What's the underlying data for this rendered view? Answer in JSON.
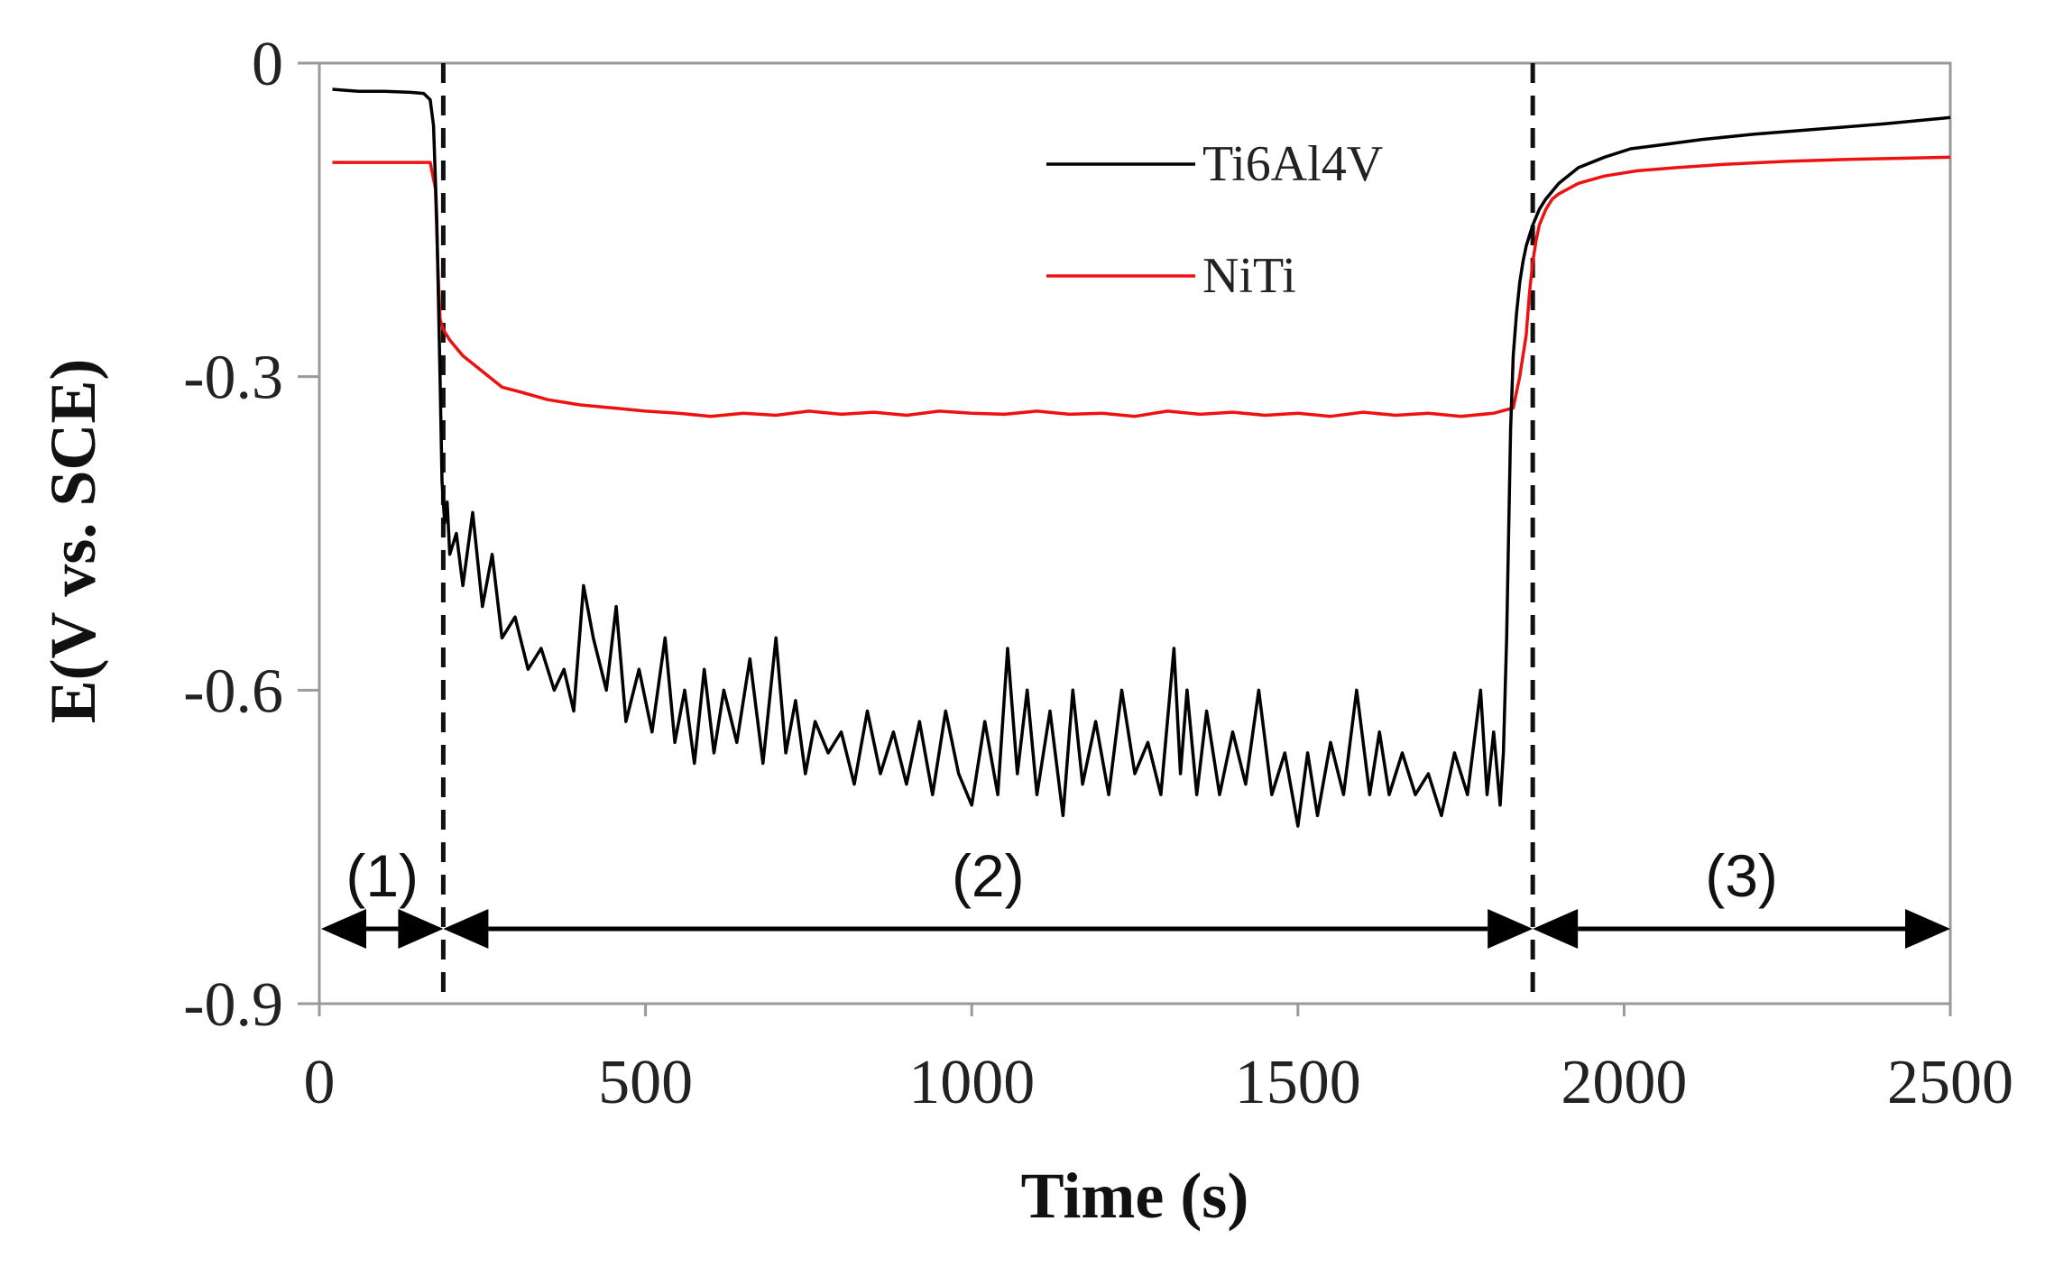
{
  "chart_data": {
    "type": "line",
    "title": "",
    "xlabel": "Time (s)",
    "ylabel": "E(V vs. SCE)",
    "xlim": [
      0,
      2500
    ],
    "ylim": [
      -0.9,
      0
    ],
    "xticks": [
      0,
      500,
      1000,
      1500,
      2000,
      2500
    ],
    "xtick_labels": [
      "0",
      "500",
      "1000",
      "1500",
      "2000",
      "2500"
    ],
    "yticks": [
      0,
      -0.3,
      -0.6,
      -0.9
    ],
    "ytick_labels": [
      "0",
      "-0.3",
      "-0.6",
      "-0.9"
    ],
    "grid": false,
    "legend_position": "top-center",
    "series": [
      {
        "name": "Ti6Al4V",
        "color": "#000000",
        "x": [
          20,
          60,
          100,
          140,
          160,
          170,
          175,
          180,
          185,
          188,
          192,
          196,
          200,
          210,
          220,
          235,
          250,
          265,
          280,
          300,
          320,
          340,
          360,
          375,
          390,
          405,
          420,
          440,
          455,
          470,
          490,
          510,
          530,
          545,
          560,
          575,
          590,
          605,
          620,
          640,
          660,
          680,
          700,
          715,
          730,
          745,
          760,
          780,
          800,
          820,
          840,
          860,
          880,
          900,
          920,
          940,
          960,
          980,
          1000,
          1020,
          1040,
          1055,
          1070,
          1085,
          1100,
          1120,
          1140,
          1155,
          1170,
          1190,
          1210,
          1230,
          1250,
          1270,
          1290,
          1310,
          1320,
          1330,
          1345,
          1360,
          1380,
          1400,
          1420,
          1440,
          1460,
          1480,
          1500,
          1515,
          1530,
          1550,
          1570,
          1590,
          1610,
          1625,
          1640,
          1660,
          1680,
          1700,
          1720,
          1740,
          1760,
          1780,
          1790,
          1800,
          1810,
          1815,
          1820,
          1823,
          1826,
          1830,
          1835,
          1840,
          1845,
          1850,
          1855,
          1860,
          1870,
          1880,
          1900,
          1930,
          1970,
          2010,
          2060,
          2120,
          2200,
          2300,
          2400,
          2500
        ],
        "y": [
          -0.025,
          -0.027,
          -0.027,
          -0.028,
          -0.029,
          -0.035,
          -0.06,
          -0.15,
          -0.3,
          -0.4,
          -0.44,
          -0.42,
          -0.47,
          -0.45,
          -0.5,
          -0.43,
          -0.52,
          -0.47,
          -0.55,
          -0.53,
          -0.58,
          -0.56,
          -0.6,
          -0.58,
          -0.62,
          -0.5,
          -0.55,
          -0.6,
          -0.52,
          -0.63,
          -0.58,
          -0.64,
          -0.55,
          -0.65,
          -0.6,
          -0.67,
          -0.58,
          -0.66,
          -0.6,
          -0.65,
          -0.57,
          -0.67,
          -0.55,
          -0.66,
          -0.61,
          -0.68,
          -0.63,
          -0.66,
          -0.64,
          -0.69,
          -0.62,
          -0.68,
          -0.64,
          -0.69,
          -0.63,
          -0.7,
          -0.62,
          -0.68,
          -0.71,
          -0.63,
          -0.7,
          -0.56,
          -0.68,
          -0.6,
          -0.7,
          -0.62,
          -0.72,
          -0.6,
          -0.69,
          -0.63,
          -0.7,
          -0.6,
          -0.68,
          -0.65,
          -0.7,
          -0.56,
          -0.68,
          -0.6,
          -0.7,
          -0.62,
          -0.7,
          -0.64,
          -0.69,
          -0.6,
          -0.7,
          -0.66,
          -0.73,
          -0.66,
          -0.72,
          -0.65,
          -0.7,
          -0.6,
          -0.7,
          -0.64,
          -0.7,
          -0.66,
          -0.7,
          -0.68,
          -0.72,
          -0.66,
          -0.7,
          -0.6,
          -0.7,
          -0.64,
          -0.71,
          -0.66,
          -0.55,
          -0.45,
          -0.35,
          -0.28,
          -0.24,
          -0.21,
          -0.19,
          -0.175,
          -0.165,
          -0.155,
          -0.14,
          -0.13,
          -0.115,
          -0.1,
          -0.09,
          -0.082,
          -0.078,
          -0.073,
          -0.068,
          -0.063,
          -0.058,
          -0.052
        ]
      },
      {
        "name": "NiTi",
        "color": "#ee1111",
        "x": [
          20,
          100,
          170,
          178,
          182,
          185,
          190,
          200,
          220,
          250,
          280,
          310,
          350,
          400,
          450,
          500,
          550,
          600,
          650,
          700,
          750,
          800,
          850,
          900,
          950,
          1000,
          1050,
          1100,
          1150,
          1200,
          1250,
          1300,
          1350,
          1400,
          1450,
          1500,
          1550,
          1600,
          1650,
          1700,
          1750,
          1800,
          1830,
          1840,
          1850,
          1855,
          1860,
          1865,
          1870,
          1880,
          1890,
          1900,
          1930,
          1970,
          2020,
          2080,
          2150,
          2250,
          2350,
          2500
        ],
        "y": [
          -0.095,
          -0.095,
          -0.095,
          -0.12,
          -0.2,
          -0.245,
          -0.255,
          -0.265,
          -0.28,
          -0.295,
          -0.31,
          -0.315,
          -0.322,
          -0.327,
          -0.33,
          -0.333,
          -0.335,
          -0.338,
          -0.335,
          -0.337,
          -0.333,
          -0.336,
          -0.334,
          -0.337,
          -0.333,
          -0.335,
          -0.336,
          -0.333,
          -0.336,
          -0.335,
          -0.338,
          -0.333,
          -0.336,
          -0.334,
          -0.337,
          -0.335,
          -0.338,
          -0.334,
          -0.337,
          -0.335,
          -0.338,
          -0.335,
          -0.33,
          -0.3,
          -0.26,
          -0.22,
          -0.19,
          -0.17,
          -0.155,
          -0.14,
          -0.13,
          -0.125,
          -0.115,
          -0.108,
          -0.103,
          -0.1,
          -0.097,
          -0.094,
          -0.092,
          -0.09
        ]
      }
    ],
    "dashed_lines_x": [
      190,
      1860
    ],
    "regions": [
      {
        "label": "(1)",
        "x_start": 0,
        "x_end": 190
      },
      {
        "label": "(2)",
        "x_start": 190,
        "x_end": 1860
      },
      {
        "label": "(3)",
        "x_start": 1860,
        "x_end": 2500
      }
    ]
  }
}
